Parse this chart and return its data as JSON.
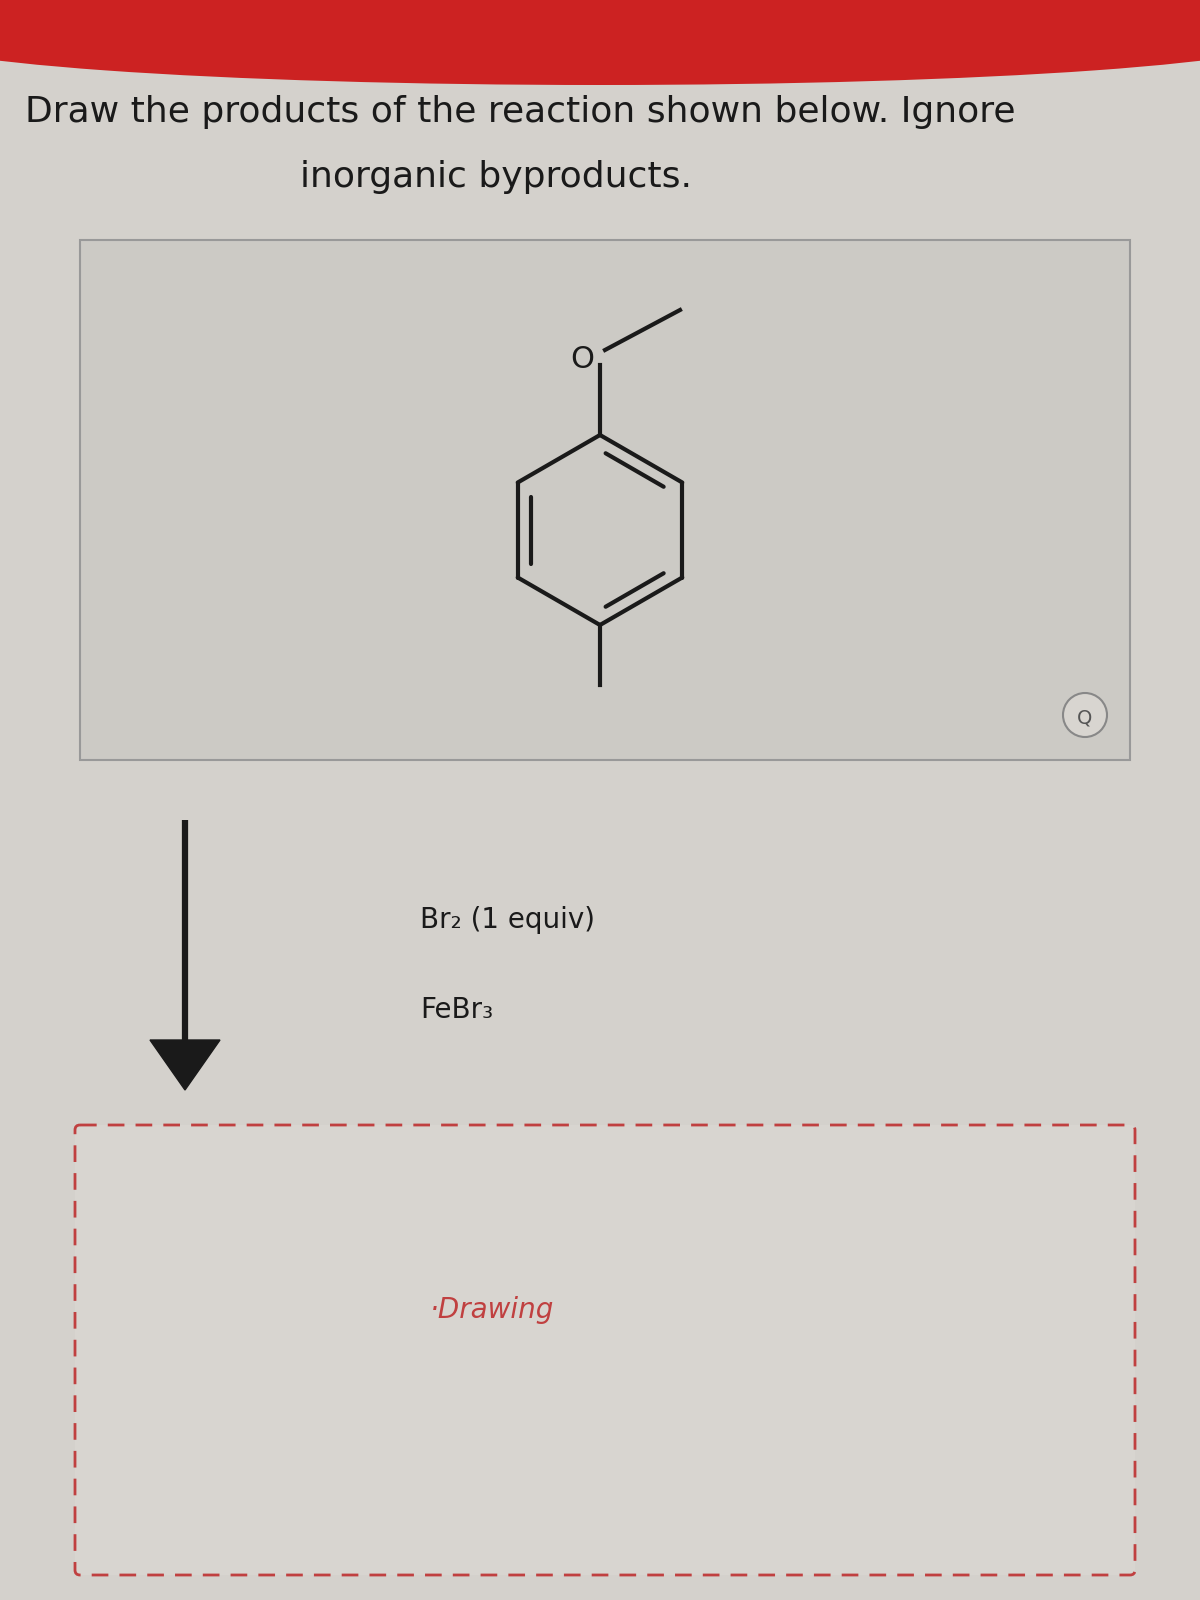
{
  "title_line1": "Draw the products of the reaction shown below. Ignore",
  "title_line2": "inorganic byproducts.",
  "reagent1": "Br₂ (1 equiv)",
  "reagent2": "FeBr₃",
  "drawing_label": "·Drawing",
  "bg_color": "#d4d1cc",
  "box1_bg": "#cccac5",
  "box2_bg": "#d8d5d0",
  "box2_border": "#c04040",
  "title_fontsize": 26,
  "reagent_fontsize": 20,
  "drawing_fontsize": 20
}
